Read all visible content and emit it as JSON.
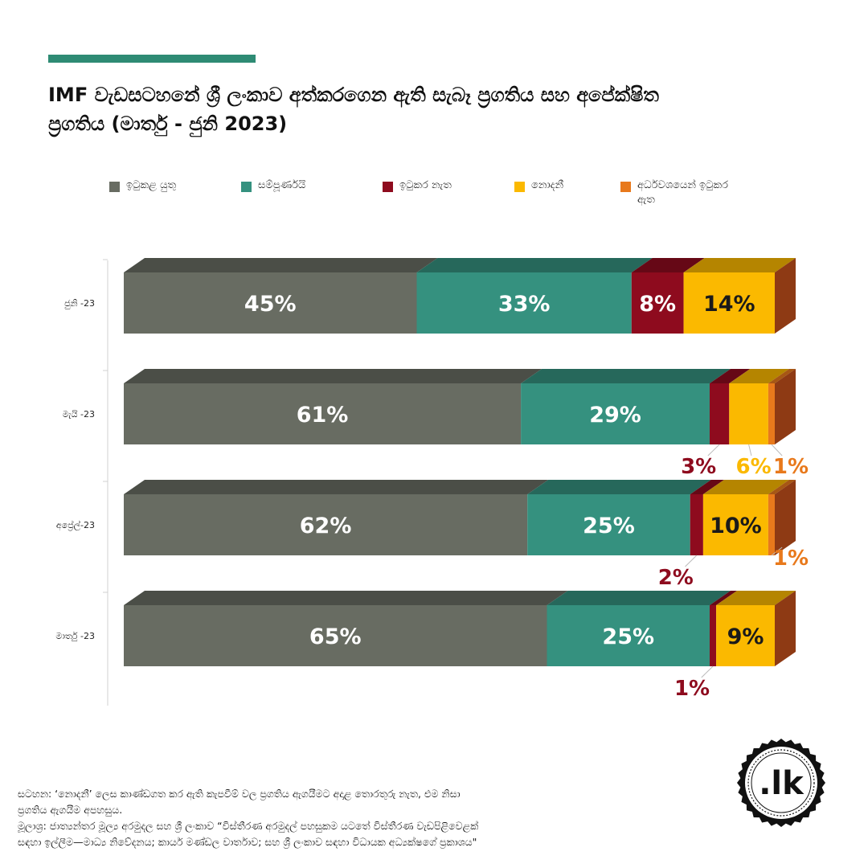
{
  "header": {
    "title_line1": "IMF වැඩසටහනේ ශ්‍රී ලංකාව අත්කරගෙන ඇති සැබෑ ප්‍රගතිය සහ අපේක්ෂිත",
    "title_line2": "ප්‍රගතිය (මාර්තු - ජුනි 2023)",
    "accent_color": "#2e8b74"
  },
  "legend": [
    {
      "label": "ඉටුකළ යුතු",
      "color": "#686c62"
    },
    {
      "label": "සම්පූර්ණයි",
      "color": "#35917f"
    },
    {
      "label": "ඉටුකර නැත",
      "color": "#8e0b1e"
    },
    {
      "label": "නොදනී",
      "color": "#fbb900"
    },
    {
      "label": "අර්ධවශයෙන් ඉටුකර ඇත",
      "color": "#e8791c"
    }
  ],
  "chart_data": {
    "type": "bar",
    "orientation": "horizontal",
    "stacked": true,
    "style": "3d",
    "value_unit": "%",
    "xlim": [
      0,
      100
    ],
    "grid": false,
    "legend_position": "top",
    "categories": [
      "ජුනි -23",
      "මැයි -23",
      "අප්‍රේල්-23",
      "මාර්තු -23"
    ],
    "series": [
      {
        "name": "ඉටුකළ යුතු",
        "color": "#686c62",
        "values": [
          45,
          61,
          62,
          65
        ]
      },
      {
        "name": "සම්පූර්ණයි",
        "color": "#35917f",
        "values": [
          33,
          29,
          25,
          25
        ]
      },
      {
        "name": "ඉටුකර නැත",
        "color": "#8e0b1e",
        "values": [
          8,
          3,
          2,
          1
        ]
      },
      {
        "name": "නොදනී",
        "color": "#fbb900",
        "values": [
          14,
          6,
          10,
          9
        ]
      },
      {
        "name": "අර්ධවශයෙන් ඉටුකර ඇත",
        "color": "#e8791c",
        "values": [
          0,
          1,
          1,
          0
        ]
      }
    ]
  },
  "footer": {
    "note_line1": "සටහන: ‘නොදනී’ ලෙස කාණ්ඩගත කර ඇති කැපවීම් වල ප්‍රගතිය ඇගයීමට අදාළ තොරතුරු නැත, එම නිසා",
    "note_line2": "ප්‍රගතිය ඇගයීම අපහසුය.",
    "source_line1": "මූලාශ්‍ර: ජාත්‍යන්තර මූල්‍ය අරමුදල සහ ශ්‍රී ලංකාව “විස්තීරණ අරමුදල් පහසුකම යටතේ විස්තීරණ වැඩපිළිවෙළක්",
    "source_line2": "සඳහා ඉල්ලීම—මාධ්‍ය නිවේදනය; කාර්ය මණ්ඩල වාර්තාව; සහ ශ්‍රී ලංකාව සඳහා විධායක අධ්‍යක්ෂගේ ප්‍රකාශය\""
  },
  "logo": {
    "text": ".lk",
    "icon": "lk-seal-icon"
  }
}
